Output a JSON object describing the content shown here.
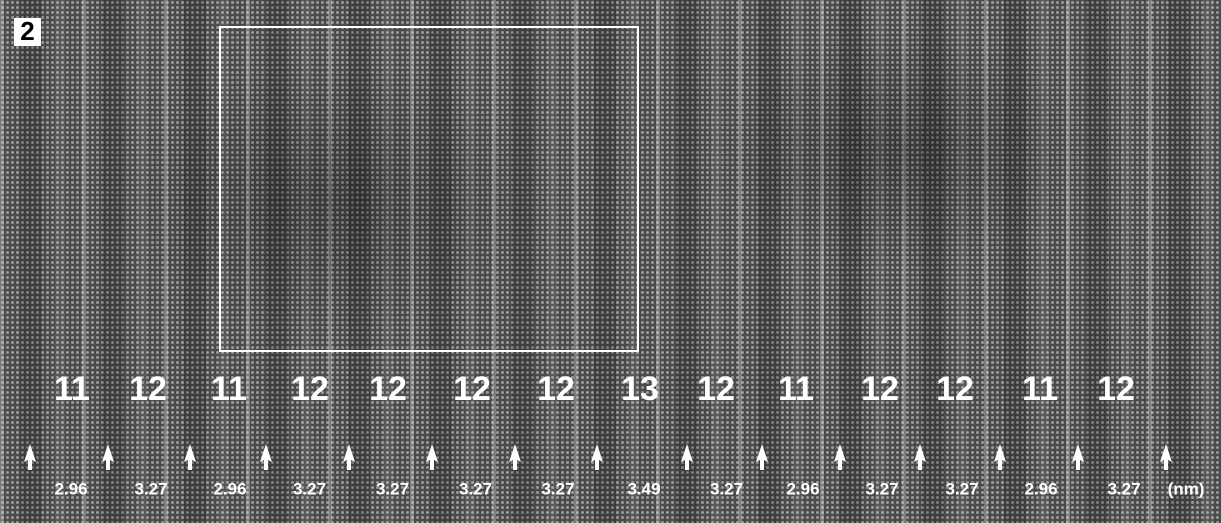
{
  "panel_label": "2",
  "layer_counts": [
    11,
    12,
    11,
    12,
    12,
    12,
    12,
    13,
    12,
    11,
    12,
    12,
    11,
    12
  ],
  "spacings": [
    2.96,
    3.27,
    2.96,
    3.27,
    3.27,
    3.27,
    3.27,
    3.49,
    3.27,
    2.96,
    3.27,
    3.27,
    2.96,
    3.27
  ],
  "unit": "(nm)"
}
